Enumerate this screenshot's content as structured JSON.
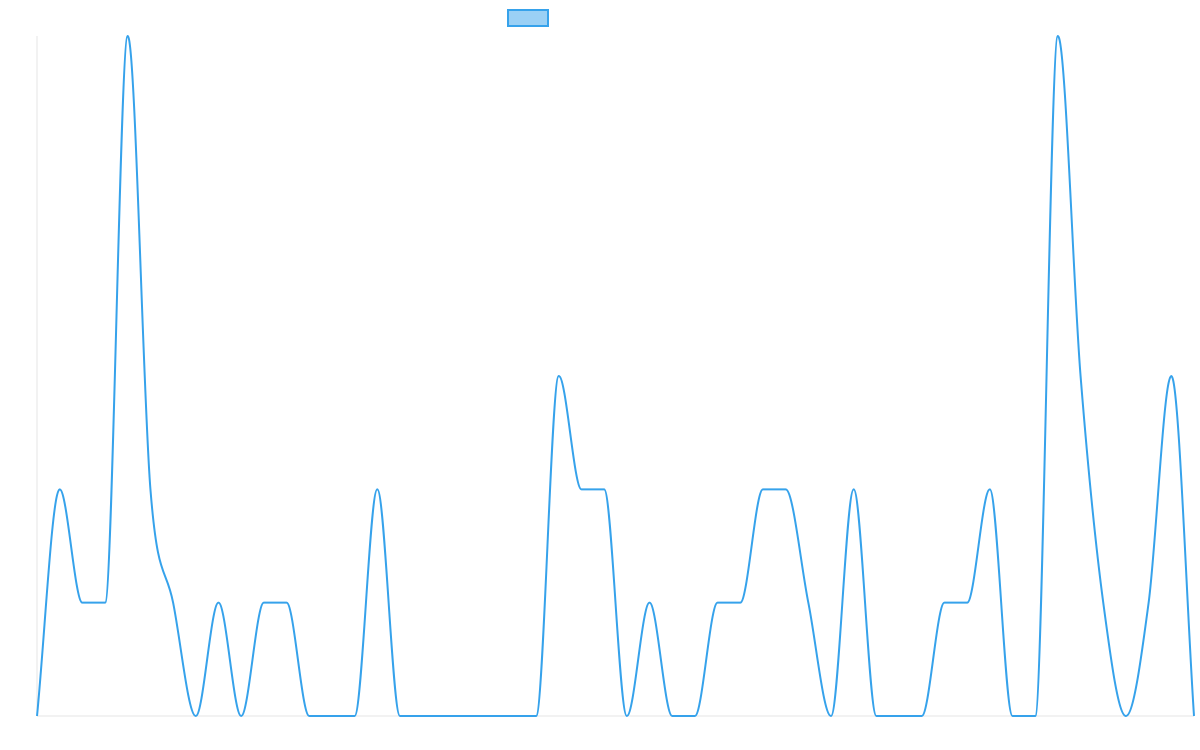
{
  "chart_data": {
    "type": "line",
    "title": "",
    "xlabel": "",
    "ylabel": "",
    "x_count": 52,
    "ylim": [
      0,
      6
    ],
    "grid": false,
    "legend": {
      "position": "top",
      "label": ""
    },
    "series": [
      {
        "values": [
          0,
          2,
          1,
          1,
          6,
          2,
          1,
          0,
          1,
          0,
          1,
          1,
          0,
          0,
          0,
          2,
          0,
          0,
          0,
          0,
          0,
          0,
          0,
          3,
          2,
          2,
          0,
          1,
          0,
          0,
          1,
          1,
          2,
          2,
          1,
          0,
          2,
          0,
          0,
          0,
          1,
          1,
          2,
          0,
          0,
          6,
          3,
          1,
          0,
          1,
          3,
          0
        ],
        "color": "#36a2eb",
        "fill": "#9ad0f5"
      }
    ]
  }
}
